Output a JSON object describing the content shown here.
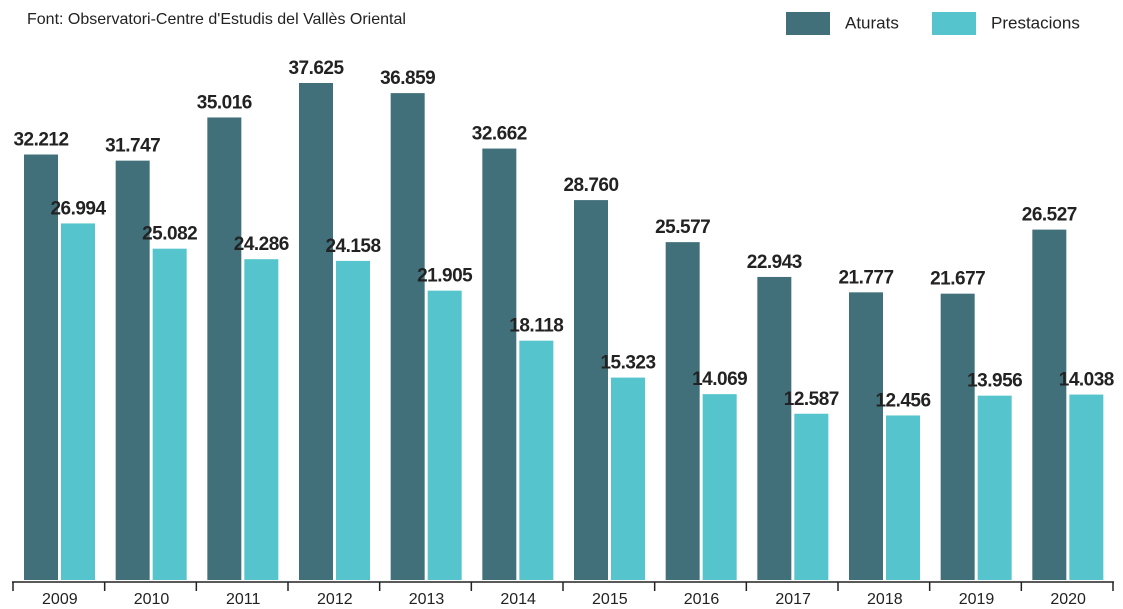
{
  "chart_data": {
    "type": "bar",
    "source": "Font: Observatori-Centre d'Estudis del Vallès Oriental",
    "categories": [
      "2009",
      "2010",
      "2011",
      "2012",
      "2013",
      "2014",
      "2015",
      "2016",
      "2017",
      "2018",
      "2019",
      "2020"
    ],
    "series": [
      {
        "name": "Aturats",
        "color": "#41707a",
        "values": [
          32212,
          31747,
          35016,
          37625,
          36859,
          32662,
          28760,
          25577,
          22943,
          21777,
          21677,
          26527
        ],
        "value_labels": [
          "32.212",
          "31.747",
          "35.016",
          "37.625",
          "36.859",
          "32.662",
          "28.760",
          "25.577",
          "22.943",
          "21.777",
          "21.677",
          "26.527"
        ]
      },
      {
        "name": "Prestacions",
        "color": "#55c4cc",
        "values": [
          26994,
          25082,
          24286,
          24158,
          21905,
          18118,
          15323,
          14069,
          12587,
          12456,
          13956,
          14038
        ],
        "value_labels": [
          "26.994",
          "25.082",
          "24.286",
          "24.158",
          "21.905",
          "18.118",
          "15.323",
          "14.069",
          "12.587",
          "12.456",
          "13.956",
          "14.038"
        ]
      }
    ],
    "legend": "top-right"
  }
}
